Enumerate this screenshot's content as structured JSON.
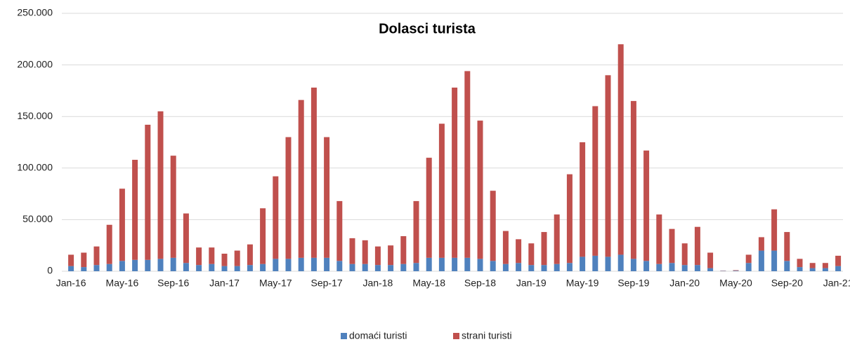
{
  "chart_data": {
    "type": "stacked_bar",
    "title": "Dolasci turista",
    "categories": [
      "Jan-16",
      null,
      null,
      null,
      "May-16",
      null,
      null,
      null,
      "Sep-16",
      null,
      null,
      null,
      "Jan-17",
      null,
      null,
      null,
      "May-17",
      null,
      null,
      null,
      "Sep-17",
      null,
      null,
      null,
      "Jan-18",
      null,
      null,
      null,
      "May-18",
      null,
      null,
      null,
      "Sep-18",
      null,
      null,
      null,
      "Jan-19",
      null,
      null,
      null,
      "May-19",
      null,
      null,
      null,
      "Sep-19",
      null,
      null,
      null,
      "Jan-20",
      null,
      null,
      null,
      "May-20",
      null,
      null,
      null,
      "Sep-20",
      null,
      null,
      null,
      "Jan-21"
    ],
    "series": [
      {
        "name": "domaći turisti",
        "color": "#4f81bd",
        "values": [
          5000,
          4000,
          6000,
          7000,
          10000,
          11000,
          11000,
          12000,
          13000,
          8000,
          6000,
          7000,
          5000,
          5000,
          6000,
          7000,
          12000,
          12000,
          13000,
          13000,
          13000,
          10000,
          7000,
          7000,
          6000,
          6000,
          7000,
          8000,
          13000,
          13000,
          13000,
          13000,
          12000,
          10000,
          7000,
          8000,
          6000,
          6000,
          7000,
          8000,
          14000,
          15000,
          14000,
          16000,
          12000,
          10000,
          7000,
          8000,
          6000,
          6000,
          3000,
          300,
          500,
          8000,
          20000,
          20000,
          10000,
          4000,
          3000,
          3000,
          5000
        ]
      },
      {
        "name": "strani turisti",
        "color": "#c0504d",
        "values": [
          11000,
          14000,
          18000,
          38000,
          70000,
          97000,
          131000,
          143000,
          99000,
          48000,
          17000,
          16000,
          12000,
          15000,
          20000,
          54000,
          80000,
          118000,
          153000,
          165000,
          117000,
          58000,
          25000,
          23000,
          18000,
          19000,
          27000,
          60000,
          97000,
          130000,
          165000,
          181000,
          134000,
          68000,
          32000,
          23000,
          21000,
          32000,
          48000,
          86000,
          111000,
          145000,
          176000,
          204000,
          153000,
          107000,
          48000,
          33000,
          21000,
          37000,
          15000,
          200,
          500,
          8000,
          13000,
          40000,
          28000,
          8000,
          5000,
          5000,
          10000
        ]
      }
    ],
    "ylim": [
      0,
      250000
    ],
    "yticks": [
      0,
      {
        "value": 50000,
        "label": "50.000"
      },
      {
        "value": 100000,
        "label": "100.000"
      },
      {
        "value": 150000,
        "label": "150.000"
      },
      {
        "value": 200000,
        "label": "200.000"
      },
      {
        "value": 250000,
        "label": "250.000"
      }
    ],
    "grid": true,
    "legend": "bottom"
  }
}
